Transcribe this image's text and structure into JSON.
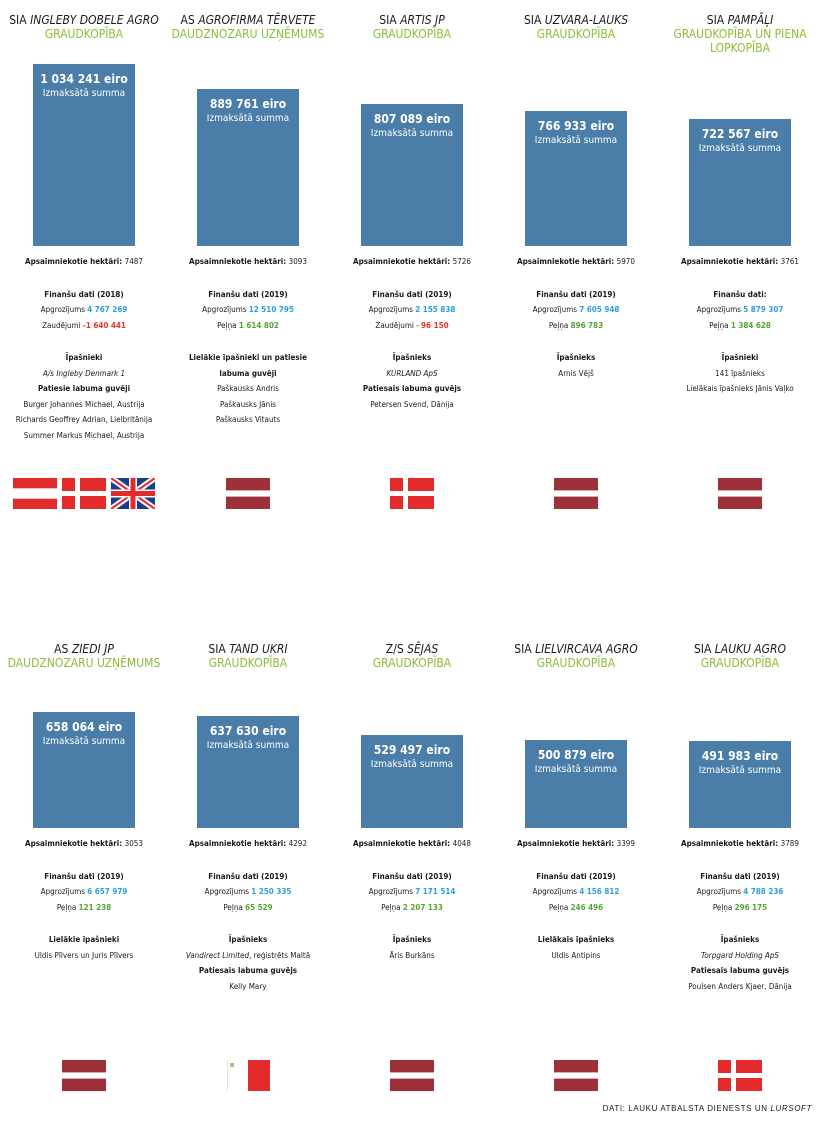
{
  "chart_data": {
    "type": "bar",
    "title": "",
    "unit": "eiro",
    "amount_label": "Izmaksātā summa",
    "area_label": "Apsaimniekotie hektāri:",
    "companies": [
      {
        "name_prefix": "SIA",
        "name_main": "INGLEBY DOBELE AGRO",
        "name_suffix": "",
        "type": [
          "GRAUDKOPĪBA"
        ],
        "amount": 1034241,
        "amount_text": "1 034 241 eiro",
        "hectares": "7487",
        "fin_title": "Finanšu dati (2018)",
        "fin_rows": [
          {
            "label": "Apgrozījums",
            "value": "4 767 269",
            "color": "blue"
          },
          {
            "label": "Zaudējumi",
            "value": "-1 640 441",
            "color": "red"
          }
        ],
        "owners": [
          {
            "text": "Īpašnieki",
            "style": "b"
          },
          {
            "text": "A/s Ingleby Denmark 1",
            "style": "i"
          },
          {
            "text": "Patiesie labuma guvēji",
            "style": "b"
          },
          {
            "text": "Burger Johannes Michael, Austrija",
            "style": ""
          },
          {
            "text": "Richards Geoffrey Adrian, Lielbritānija",
            "style": ""
          },
          {
            "text": "Summer Markus Michael, Austrija",
            "style": ""
          }
        ],
        "flags": [
          "austria",
          "denmark",
          "uk"
        ]
      },
      {
        "name_prefix": "AS",
        "name_main": "AGROFIRMA TĒRVETE",
        "name_suffix": "",
        "type": [
          "DAUDZNOZARU UZŅĒMUMS"
        ],
        "amount": 889761,
        "amount_text": "889 761 eiro",
        "hectares": "3093",
        "fin_title": "Finanšu dati (2019)",
        "fin_rows": [
          {
            "label": "Apgrozījums",
            "value": "12 510 795",
            "color": "blue"
          },
          {
            "label": "Peļņa",
            "value": "1 614 802",
            "color": "green"
          }
        ],
        "owners": [
          {
            "text": "Lielākie īpašnieki un patiesie",
            "style": "b"
          },
          {
            "text": "labuma guvēji",
            "style": "b"
          },
          {
            "text": "Paškausks Andris",
            "style": ""
          },
          {
            "text": "Paškausks Jānis",
            "style": ""
          },
          {
            "text": "Paškausks Vitauts",
            "style": ""
          }
        ],
        "flags": [
          "latvia"
        ]
      },
      {
        "name_prefix": "SIA",
        "name_main": "ARTIS JP",
        "name_suffix": "",
        "type": [
          "GRAUDKOPĪBA"
        ],
        "amount": 807089,
        "amount_text": "807 089 eiro",
        "hectares": "5726",
        "fin_title": "Finanšu dati (2019)",
        "fin_rows": [
          {
            "label": "Apgrozījums",
            "value": "2 155 838",
            "color": "blue"
          },
          {
            "label": "Zaudējumi -",
            "value": "96 150",
            "color": "red"
          }
        ],
        "owners": [
          {
            "text": "Īpašnieks",
            "style": "b"
          },
          {
            "text": "KURLAND ApS",
            "style": "i"
          },
          {
            "text": "Patiesais labuma guvējs",
            "style": "b"
          },
          {
            "text": "Petersen Svend, Dānija",
            "style": ""
          }
        ],
        "flags": [
          "denmark"
        ]
      },
      {
        "name_prefix": "SIA",
        "name_main": "UZVARA-LAUKS",
        "name_suffix": "",
        "type": [
          "GRAUDKOPĪBA"
        ],
        "amount": 766933,
        "amount_text": "766 933 eiro",
        "hectares": "5970",
        "fin_title": "Finanšu dati (2019)",
        "fin_rows": [
          {
            "label": "Apgrozījums",
            "value": "7 605 948",
            "color": "blue"
          },
          {
            "label": "Peļņa",
            "value": "896 783",
            "color": "green"
          }
        ],
        "owners": [
          {
            "text": "Īpašnieks",
            "style": "b"
          },
          {
            "text": "Arnis Vējš",
            "style": ""
          }
        ],
        "flags": [
          "latvia"
        ]
      },
      {
        "name_prefix": "SIA",
        "name_main": "PAMPĀĻI",
        "name_suffix": "",
        "type": [
          "GRAUDKOPĪBA UN PIENA",
          "LOPKOPĪBA"
        ],
        "amount": 722567,
        "amount_text": "722 567 eiro",
        "hectares": "3761",
        "fin_title": "Finanšu dati:",
        "fin_rows": [
          {
            "label": "Apgrozījums",
            "value": "5 879 307",
            "color": "blue"
          },
          {
            "label": "Peļņa",
            "value": "1 384 628",
            "color": "green"
          }
        ],
        "owners": [
          {
            "text": "Īpašnieki",
            "style": "b"
          },
          {
            "text": "141 īpašnieks",
            "style": ""
          },
          {
            "text": "Lielākais īpašnieks Jānis Vaļko",
            "style": ""
          }
        ],
        "flags": [
          "latvia"
        ]
      },
      {
        "name_prefix": "AS",
        "name_main": "ZIEDI JP",
        "name_suffix": "",
        "type": [
          "DAUDZNOZARU UZŅĒMUMS"
        ],
        "amount": 658064,
        "amount_text": "658 064 eiro",
        "hectares": "3053",
        "fin_title": "Finanšu dati (2019)",
        "fin_rows": [
          {
            "label": "Apgrozījums",
            "value": "6 657 979",
            "color": "blue"
          },
          {
            "label": "Peļņa",
            "value": "121 238",
            "color": "green"
          }
        ],
        "owners": [
          {
            "text": "Lielākie īpašnieki",
            "style": "b"
          },
          {
            "text": "Uldis Pīlvers un Juris Pīlvers",
            "style": ""
          }
        ],
        "flags": [
          "latvia"
        ]
      },
      {
        "name_prefix": "SIA",
        "name_main": "TAND UKRI",
        "name_suffix": "",
        "type": [
          "GRAUDKOPĪBA"
        ],
        "amount": 637630,
        "amount_text": "637 630  eiro",
        "hectares": "4292",
        "fin_title": "Finanšu dati (2019)",
        "fin_rows": [
          {
            "label": "Apgrozījums",
            "value": "1 250 335",
            "color": "blue"
          },
          {
            "label": "Peļņa",
            "value": "65 529",
            "color": "green"
          }
        ],
        "owners": [
          {
            "text": "Īpašnieks",
            "style": "b"
          },
          {
            "text": "Vandirect Limited, reģistrēts Maltā",
            "style": "mixed",
            "italic_part": "Vandirect Limited",
            "rest": ", reģistrēts Maltā"
          },
          {
            "text": "Patiesais labuma guvējs",
            "style": "b"
          },
          {
            "text": "Kelly Mary",
            "style": ""
          }
        ],
        "flags": [
          "malta"
        ]
      },
      {
        "name_prefix": "Z/S",
        "name_main": "SĒJAS",
        "name_suffix": "",
        "type": [
          "GRAUDKOPĪBA"
        ],
        "amount": 529497,
        "amount_text": "529 497 eiro",
        "hectares": "4048",
        "fin_title": "Finanšu dati (2019)",
        "fin_rows": [
          {
            "label": "Apgrozījums",
            "value": "7 171 514",
            "color": "blue"
          },
          {
            "label": "Peļņa",
            "value": "2 207 133",
            "color": "green"
          }
        ],
        "owners": [
          {
            "text": "Īpašnieks",
            "style": "b"
          },
          {
            "text": "Āris Burkāns",
            "style": ""
          }
        ],
        "flags": [
          "latvia"
        ]
      },
      {
        "name_prefix": "SIA",
        "name_main": "LIELVIRCAVA AGRO",
        "name_suffix": "",
        "type": [
          "GRAUDKOPĪBA"
        ],
        "amount": 500879,
        "amount_text": "500 879 eiro",
        "hectares": "3399",
        "fin_title": "Finanšu dati (2019)",
        "fin_rows": [
          {
            "label": "Apgrozījums",
            "value": "4 156 812",
            "color": "blue"
          },
          {
            "label": "Peļņa",
            "value": "246 496",
            "color": "green"
          }
        ],
        "owners": [
          {
            "text": "Lielākais īpašnieks",
            "style": "b"
          },
          {
            "text": "Uldis Antipins",
            "style": ""
          }
        ],
        "flags": [
          "latvia"
        ]
      },
      {
        "name_prefix": "SIA",
        "name_main": "LAUKU AGRO",
        "name_suffix": "",
        "type": [
          "GRAUDKOPĪBA"
        ],
        "amount": 491983,
        "amount_text": "491 983 eiro",
        "hectares": "3789",
        "fin_title": "Finanšu dati (2019)",
        "fin_rows": [
          {
            "label": "Apgrozījums",
            "value": "4 788 236",
            "color": "blue"
          },
          {
            "label": "Peļņa",
            "value": "296 175",
            "color": "green"
          }
        ],
        "owners": [
          {
            "text": "Īpašnieks",
            "style": "b"
          },
          {
            "text": "Torpgard Holding ApS",
            "style": "i"
          },
          {
            "text": "Patiesais labuma guvējs",
            "style": "b"
          },
          {
            "text": "Poulsen Anders Kjaer, Dānija",
            "style": ""
          }
        ],
        "flags": [
          "denmark"
        ]
      }
    ]
  },
  "colors": {
    "bar": "#4a7ea8",
    "type": "#8cbd35",
    "turnover": "#2ba0dc",
    "loss": "#e8332a",
    "profit": "#56a435"
  },
  "source": {
    "prefix": "DATI: LAUKU ATBALSTA DIENESTS UN ",
    "italic": "LURSOFT"
  }
}
